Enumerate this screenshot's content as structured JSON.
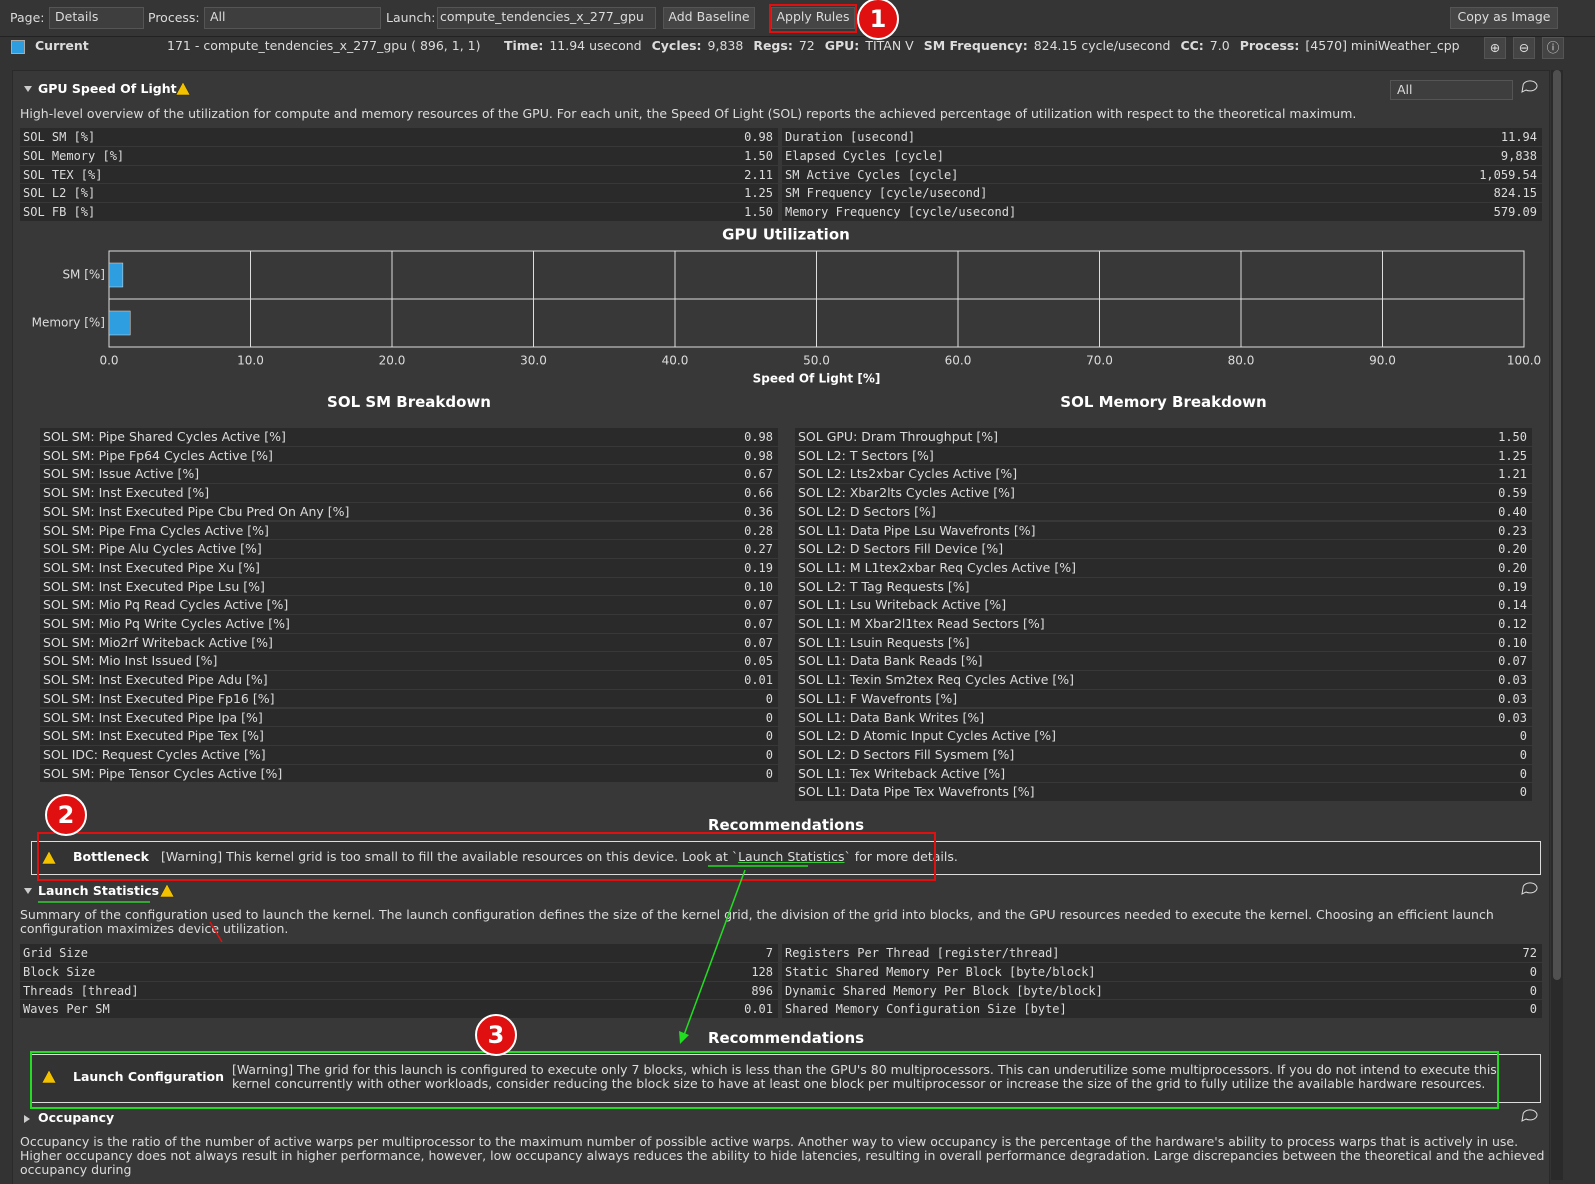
{
  "toolbar": {
    "page_label": "Page:",
    "page_value": "Details",
    "process_label": "Process:",
    "process_value": "All",
    "launch_label": "Launch:",
    "launch_value": "compute_tendencies_x_277_gpu",
    "add_baseline": "Add Baseline",
    "apply_rules": "Apply Rules",
    "copy_as_image": "Copy as Image"
  },
  "result": {
    "name": "Current",
    "kernel": "171 - compute_tendencies_x_277_gpu ( 896,   1,   1)",
    "fields": [
      {
        "label": "Time:",
        "value": "11.94 usecond"
      },
      {
        "label": "Cycles:",
        "value": "9,838"
      },
      {
        "label": "Regs:",
        "value": "72"
      },
      {
        "label": "GPU:",
        "value": "TITAN V"
      },
      {
        "label": "SM Frequency:",
        "value": "824.15 cycle/usecond"
      },
      {
        "label": "CC:",
        "value": "7.0"
      },
      {
        "label": "Process:",
        "value": "[4570] miniWeather_cpp"
      }
    ]
  },
  "sol_section": {
    "title": "GPU Speed Of Light",
    "filter": "All",
    "description": "High-level overview of the utilization for compute and memory resources of the GPU. For each unit, the Speed Of Light (SOL) reports the achieved percentage of utilization with respect to the theoretical maximum.",
    "left_metrics": [
      [
        "SOL SM [%]",
        "0.98"
      ],
      [
        "SOL Memory [%]",
        "1.50"
      ],
      [
        "SOL TEX [%]",
        "2.11"
      ],
      [
        "SOL L2 [%]",
        "1.25"
      ],
      [
        "SOL FB [%]",
        "1.50"
      ]
    ],
    "right_metrics": [
      [
        "Duration [usecond]",
        "11.94"
      ],
      [
        "Elapsed Cycles [cycle]",
        "9,838"
      ],
      [
        "SM Active Cycles [cycle]",
        "1,059.54"
      ],
      [
        "SM Frequency [cycle/usecond]",
        "824.15"
      ],
      [
        "Memory Frequency [cycle/usecond]",
        "579.09"
      ]
    ]
  },
  "chart_data": {
    "type": "bar",
    "orientation": "horizontal",
    "title": "GPU Utilization",
    "categories": [
      "SM [%]",
      "Memory [%]"
    ],
    "values": [
      0.98,
      1.5
    ],
    "color": "#2f9ee0",
    "xlabel": "Speed Of Light [%]",
    "xlim": [
      0,
      100
    ],
    "xticks": [
      {
        "value": 0,
        "label": "0.0"
      },
      {
        "value": 10,
        "label": "10.0"
      },
      {
        "value": 20,
        "label": "20.0"
      },
      {
        "value": 30,
        "label": "30.0"
      },
      {
        "value": 40,
        "label": "40.0"
      },
      {
        "value": 50,
        "label": "50.0"
      },
      {
        "value": 60,
        "label": "60.0"
      },
      {
        "value": 70,
        "label": "70.0"
      },
      {
        "value": 80,
        "label": "80.0"
      },
      {
        "value": 90,
        "label": "90.0"
      },
      {
        "value": 100,
        "label": "100.0"
      }
    ],
    "grid": true
  },
  "sm_breakdown": {
    "title": "SOL SM Breakdown",
    "rows": [
      [
        "SOL SM: Pipe Shared Cycles Active [%]",
        "0.98"
      ],
      [
        "SOL SM: Pipe Fp64 Cycles Active [%]",
        "0.98"
      ],
      [
        "SOL SM: Issue Active [%]",
        "0.67"
      ],
      [
        "SOL SM: Inst Executed [%]",
        "0.66"
      ],
      [
        "SOL SM: Inst Executed Pipe Cbu Pred On Any [%]",
        "0.36"
      ],
      [
        "SOL SM: Pipe Fma Cycles Active [%]",
        "0.28"
      ],
      [
        "SOL SM: Pipe Alu Cycles Active [%]",
        "0.27"
      ],
      [
        "SOL SM: Inst Executed Pipe Xu [%]",
        "0.19"
      ],
      [
        "SOL SM: Inst Executed Pipe Lsu [%]",
        "0.10"
      ],
      [
        "SOL SM: Mio Pq Read Cycles Active [%]",
        "0.07"
      ],
      [
        "SOL SM: Mio Pq Write Cycles Active [%]",
        "0.07"
      ],
      [
        "SOL SM: Mio2rf Writeback Active [%]",
        "0.07"
      ],
      [
        "SOL SM: Mio Inst Issued [%]",
        "0.05"
      ],
      [
        "SOL SM: Inst Executed Pipe Adu [%]",
        "0.01"
      ],
      [
        "SOL SM: Inst Executed Pipe Fp16 [%]",
        "0"
      ],
      [
        "SOL SM: Inst Executed Pipe Ipa [%]",
        "0"
      ],
      [
        "SOL SM: Inst Executed Pipe Tex [%]",
        "0"
      ],
      [
        "SOL IDC: Request Cycles Active [%]",
        "0"
      ],
      [
        "SOL SM: Pipe Tensor Cycles Active [%]",
        "0"
      ]
    ]
  },
  "memory_breakdown": {
    "title": "SOL Memory Breakdown",
    "rows": [
      [
        "SOL GPU: Dram Throughput [%]",
        "1.50"
      ],
      [
        "SOL L2: T Sectors [%]",
        "1.25"
      ],
      [
        "SOL L2: Lts2xbar Cycles Active [%]",
        "1.21"
      ],
      [
        "SOL L2: Xbar2lts Cycles Active [%]",
        "0.59"
      ],
      [
        "SOL L2: D Sectors [%]",
        "0.40"
      ],
      [
        "SOL L1: Data Pipe Lsu Wavefronts [%]",
        "0.23"
      ],
      [
        "SOL L2: D Sectors Fill Device [%]",
        "0.20"
      ],
      [
        "SOL L1: M L1tex2xbar Req Cycles Active [%]",
        "0.20"
      ],
      [
        "SOL L2: T Tag Requests [%]",
        "0.19"
      ],
      [
        "SOL L1: Lsu Writeback Active [%]",
        "0.14"
      ],
      [
        "SOL L1: M Xbar2l1tex Read Sectors [%]",
        "0.12"
      ],
      [
        "SOL L1: Lsuin Requests [%]",
        "0.10"
      ],
      [
        "SOL L1: Data Bank Reads [%]",
        "0.07"
      ],
      [
        "SOL L1: Texin Sm2tex Req Cycles Active [%]",
        "0.03"
      ],
      [
        "SOL L1: F Wavefronts [%]",
        "0.03"
      ],
      [
        "SOL L1: Data Bank Writes [%]",
        "0.03"
      ],
      [
        "SOL L2: D Atomic Input Cycles Active [%]",
        "0"
      ],
      [
        "SOL L2: D Sectors Fill Sysmem [%]",
        "0"
      ],
      [
        "SOL L1: Tex Writeback Active [%]",
        "0"
      ],
      [
        "SOL L1: Data Pipe Tex Wavefronts [%]",
        "0"
      ]
    ]
  },
  "recommendations_1": {
    "title": "Recommendations",
    "name": "Bottleneck",
    "text_before": "[Warning] This kernel grid is too small to fill the available resources on this device. Look at `",
    "link": "Launch Statistics",
    "text_after": "` for more details."
  },
  "launch_section": {
    "title": "Launch Statistics",
    "description": "Summary of the configuration used to launch the kernel. The launch configuration defines the size of the kernel grid, the division of the grid into blocks, and the GPU resources needed to execute the kernel. Choosing an efficient launch configuration maximizes device utilization.",
    "left_metrics": [
      [
        "Grid Size",
        "7"
      ],
      [
        "Block Size",
        "128"
      ],
      [
        "Threads [thread]",
        "896"
      ],
      [
        "Waves Per SM",
        "0.01"
      ]
    ],
    "right_metrics": [
      [
        "Registers Per Thread [register/thread]",
        "72"
      ],
      [
        "Static Shared Memory Per Block [byte/block]",
        "0"
      ],
      [
        "Dynamic Shared Memory Per Block [byte/block]",
        "0"
      ],
      [
        "Shared Memory Configuration Size [byte]",
        "0"
      ]
    ]
  },
  "recommendations_2": {
    "title": "Recommendations",
    "name": "Launch Configuration",
    "text": "[Warning] The grid for this launch is configured to execute only 7 blocks, which is less than the GPU's 80 multiprocessors. This can underutilize some multiprocessors. If you do not intend to execute this kernel concurrently with other workloads, consider reducing the block size to have at least one block per multiprocessor or increase the size of the grid to fully utilize the available hardware resources."
  },
  "occupancy_section": {
    "title": "Occupancy",
    "description": "Occupancy is the ratio of the number of active warps per multiprocessor to the maximum number of possible active warps. Another way to view occupancy is the percentage of the hardware's ability to process warps that is actively in use. Higher occupancy does not always result in higher performance, however, low occupancy always reduces the ability to hide latencies, resulting in overall performance degradation. Large discrepancies between the theoretical and the achieved occupancy during"
  },
  "callouts": [
    "1",
    "2",
    "3"
  ]
}
